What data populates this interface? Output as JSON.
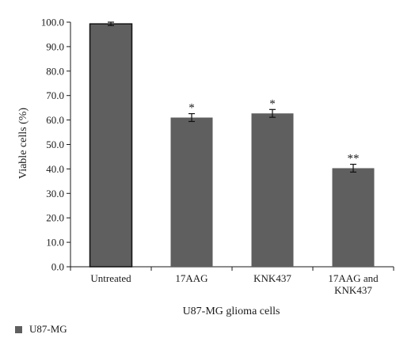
{
  "chart_data": {
    "type": "bar",
    "categories": [
      [
        "Untreated"
      ],
      [
        "17AAG"
      ],
      [
        "KNK437"
      ],
      [
        "17AAG and",
        "KNK437"
      ]
    ],
    "series": [
      {
        "name": "U87-MG",
        "values": [
          99.3,
          61.0,
          62.7,
          40.3
        ],
        "errors": [
          0.7,
          1.6,
          1.6,
          1.6
        ],
        "significance": [
          "",
          "*",
          "*",
          "**"
        ]
      }
    ],
    "ylabel": "Viable cells (%)",
    "xlabel": "U87-MG glioma cells",
    "ylim": [
      0,
      100
    ],
    "yticks": [
      "0.0",
      "10.0",
      "20.0",
      "30.0",
      "40.0",
      "50.0",
      "60.0",
      "70.0",
      "80.0",
      "90.0",
      "100.0"
    ],
    "legend_position": "bottom-left",
    "grid": false,
    "colors": {
      "bar": "#5f5f5f",
      "first_bar_edge": "#111111"
    }
  }
}
